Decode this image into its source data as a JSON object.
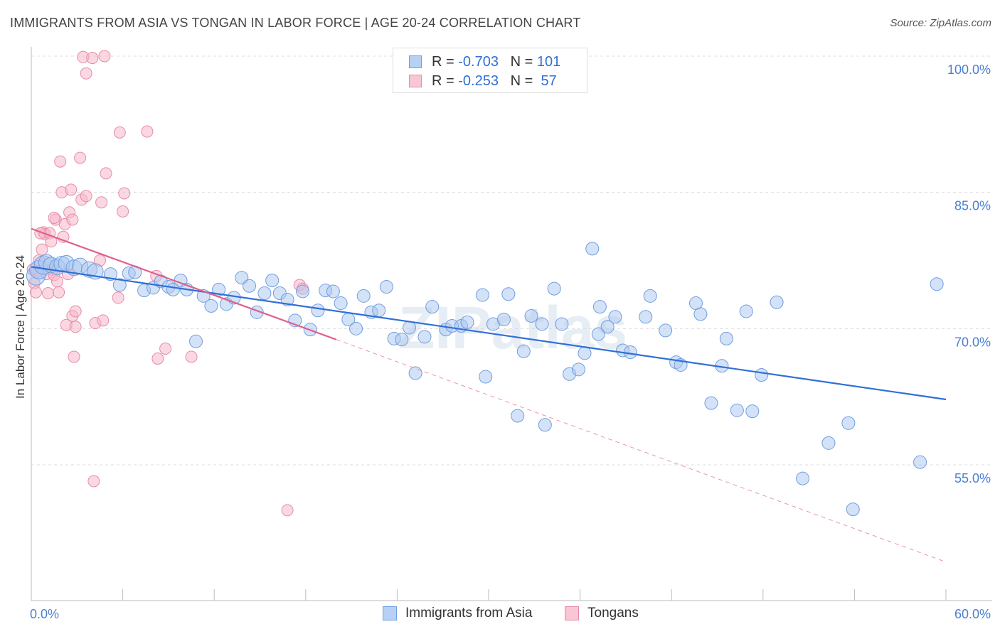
{
  "header": {
    "title": "IMMIGRANTS FROM ASIA VS TONGAN IN LABOR FORCE | AGE 20-24 CORRELATION CHART",
    "source": "Source: ZipAtlas.com"
  },
  "legend": {
    "rows": [
      {
        "r_label": "R =",
        "r_value": "-0.703",
        "n_label": "N =",
        "n_value": "101"
      },
      {
        "r_label": "R =",
        "r_value": "-0.253",
        "n_label": "N =",
        "n_value": " 57"
      }
    ]
  },
  "watermark": "ZIPatlas",
  "chart_data": {
    "type": "scatter",
    "title": "IMMIGRANTS FROM ASIA VS TONGAN IN LABOR FORCE | AGE 20-24 CORRELATION CHART",
    "xlabel": "",
    "ylabel": "In Labor Force | Age 20-24",
    "xlim": [
      0,
      60
    ],
    "ylim": [
      40,
      102
    ],
    "x_tick_labels": [
      "0.0%",
      "60.0%"
    ],
    "y_ticks": [
      55,
      70,
      85,
      100
    ],
    "y_tick_labels": [
      "55.0%",
      "70.0%",
      "85.0%",
      "100.0%"
    ],
    "grid": true,
    "legend_position": "bottom",
    "colors": {
      "asia": "#a9c6f0",
      "asia_line": "#2f6fd6",
      "tongan": "#f5b8cb",
      "tongan_line": "#e0608a"
    },
    "series": [
      {
        "name": "Immigrants from Asia",
        "r": -0.703,
        "n": 101,
        "trend": {
          "x": [
            0,
            60
          ],
          "y": [
            76.8,
            62.2
          ]
        },
        "points": [
          [
            0.3,
            75.8
          ],
          [
            0.5,
            76.5
          ],
          [
            0.8,
            77.0
          ],
          [
            1.0,
            77.3
          ],
          [
            1.3,
            77.0
          ],
          [
            1.7,
            76.8
          ],
          [
            2.0,
            77.1
          ],
          [
            2.3,
            77.2
          ],
          [
            2.8,
            76.7
          ],
          [
            3.2,
            76.9
          ],
          [
            3.8,
            76.5
          ],
          [
            4.2,
            76.3
          ],
          [
            5.2,
            76.0
          ],
          [
            5.8,
            74.8
          ],
          [
            6.4,
            76.1
          ],
          [
            6.8,
            76.2
          ],
          [
            7.4,
            74.2
          ],
          [
            8.0,
            74.5
          ],
          [
            8.5,
            75.2
          ],
          [
            9.0,
            74.6
          ],
          [
            9.3,
            74.3
          ],
          [
            9.8,
            75.3
          ],
          [
            10.2,
            74.3
          ],
          [
            10.8,
            68.6
          ],
          [
            11.3,
            73.6
          ],
          [
            11.8,
            72.5
          ],
          [
            12.3,
            74.3
          ],
          [
            12.8,
            72.7
          ],
          [
            13.3,
            73.4
          ],
          [
            13.8,
            75.6
          ],
          [
            14.3,
            74.7
          ],
          [
            14.8,
            71.8
          ],
          [
            15.3,
            73.9
          ],
          [
            15.8,
            75.3
          ],
          [
            16.3,
            73.9
          ],
          [
            16.8,
            73.2
          ],
          [
            17.3,
            70.9
          ],
          [
            17.8,
            74.1
          ],
          [
            18.3,
            69.9
          ],
          [
            18.8,
            72.0
          ],
          [
            19.3,
            74.2
          ],
          [
            19.8,
            74.1
          ],
          [
            20.3,
            72.8
          ],
          [
            20.8,
            71.0
          ],
          [
            21.3,
            70.0
          ],
          [
            21.8,
            73.6
          ],
          [
            22.3,
            71.8
          ],
          [
            22.8,
            72.0
          ],
          [
            23.3,
            74.6
          ],
          [
            23.8,
            68.9
          ],
          [
            24.3,
            68.8
          ],
          [
            24.8,
            70.1
          ],
          [
            25.2,
            65.1
          ],
          [
            25.8,
            69.1
          ],
          [
            26.3,
            72.4
          ],
          [
            27.2,
            69.9
          ],
          [
            27.6,
            70.3
          ],
          [
            28.2,
            70.3
          ],
          [
            28.6,
            70.7
          ],
          [
            29.6,
            73.7
          ],
          [
            29.8,
            64.7
          ],
          [
            30.3,
            70.5
          ],
          [
            31.0,
            71.0
          ],
          [
            31.3,
            73.8
          ],
          [
            31.9,
            60.4
          ],
          [
            32.3,
            67.5
          ],
          [
            32.8,
            71.4
          ],
          [
            33.5,
            70.5
          ],
          [
            33.7,
            59.4
          ],
          [
            34.3,
            74.4
          ],
          [
            34.8,
            70.5
          ],
          [
            35.3,
            65.0
          ],
          [
            35.9,
            65.5
          ],
          [
            36.3,
            67.3
          ],
          [
            36.8,
            78.8
          ],
          [
            37.2,
            69.4
          ],
          [
            37.3,
            72.4
          ],
          [
            37.8,
            70.2
          ],
          [
            38.3,
            71.3
          ],
          [
            38.8,
            67.6
          ],
          [
            39.3,
            67.4
          ],
          [
            40.3,
            71.3
          ],
          [
            40.6,
            73.6
          ],
          [
            41.6,
            69.8
          ],
          [
            42.3,
            66.3
          ],
          [
            42.6,
            66.0
          ],
          [
            43.6,
            72.8
          ],
          [
            43.9,
            71.6
          ],
          [
            44.6,
            61.8
          ],
          [
            45.3,
            65.9
          ],
          [
            45.6,
            68.9
          ],
          [
            46.3,
            61.0
          ],
          [
            46.9,
            71.9
          ],
          [
            47.3,
            60.9
          ],
          [
            47.9,
            64.9
          ],
          [
            48.9,
            72.9
          ],
          [
            50.6,
            53.5
          ],
          [
            52.3,
            57.4
          ],
          [
            53.6,
            59.6
          ],
          [
            53.9,
            50.1
          ],
          [
            58.3,
            55.3
          ],
          [
            59.4,
            74.9
          ]
        ]
      },
      {
        "name": "Tongans",
        "r": -0.253,
        "n": 57,
        "trend": {
          "x": [
            0,
            20
          ],
          "y": [
            81.0,
            68.8
          ]
        },
        "trend_extended": {
          "x": [
            20,
            60
          ],
          "y": [
            68.8,
            44.3
          ]
        },
        "points": [
          [
            0.2,
            75.0
          ],
          [
            0.3,
            74.0
          ],
          [
            0.4,
            76.3
          ],
          [
            0.5,
            77.5
          ],
          [
            0.7,
            78.7
          ],
          [
            0.8,
            80.6
          ],
          [
            0.9,
            80.4
          ],
          [
            1.0,
            76.0
          ],
          [
            1.1,
            73.9
          ],
          [
            1.2,
            80.5
          ],
          [
            1.3,
            79.6
          ],
          [
            1.4,
            76.5
          ],
          [
            1.5,
            75.9
          ],
          [
            1.6,
            82.0
          ],
          [
            1.7,
            75.2
          ],
          [
            1.8,
            74.0
          ],
          [
            1.9,
            88.4
          ],
          [
            2.0,
            85.0
          ],
          [
            2.1,
            80.1
          ],
          [
            2.2,
            81.5
          ],
          [
            2.3,
            70.4
          ],
          [
            2.4,
            76.0
          ],
          [
            2.5,
            82.8
          ],
          [
            2.6,
            85.3
          ],
          [
            2.7,
            82.0
          ],
          [
            2.7,
            71.4
          ],
          [
            2.8,
            66.9
          ],
          [
            2.9,
            71.9
          ],
          [
            2.9,
            70.2
          ],
          [
            3.2,
            88.8
          ],
          [
            3.3,
            84.2
          ],
          [
            3.4,
            99.9
          ],
          [
            3.6,
            98.1
          ],
          [
            3.6,
            84.6
          ],
          [
            4.0,
            99.8
          ],
          [
            4.1,
            53.2
          ],
          [
            4.2,
            70.6
          ],
          [
            4.5,
            77.5
          ],
          [
            4.6,
            83.9
          ],
          [
            4.7,
            70.9
          ],
          [
            4.8,
            100.0
          ],
          [
            4.9,
            87.1
          ],
          [
            5.7,
            73.4
          ],
          [
            5.8,
            91.6
          ],
          [
            6.0,
            82.9
          ],
          [
            6.1,
            84.9
          ],
          [
            7.6,
            91.7
          ],
          [
            8.2,
            75.8
          ],
          [
            8.3,
            66.7
          ],
          [
            8.8,
            67.8
          ],
          [
            10.5,
            66.9
          ],
          [
            16.8,
            50.0
          ],
          [
            17.6,
            74.8
          ],
          [
            17.8,
            74.4
          ],
          [
            0.1,
            76.5
          ],
          [
            0.6,
            80.5
          ],
          [
            1.5,
            82.2
          ]
        ]
      }
    ]
  },
  "bottom_legend": {
    "items": [
      {
        "label": "Immigrants from Asia"
      },
      {
        "label": "Tongans"
      }
    ]
  }
}
